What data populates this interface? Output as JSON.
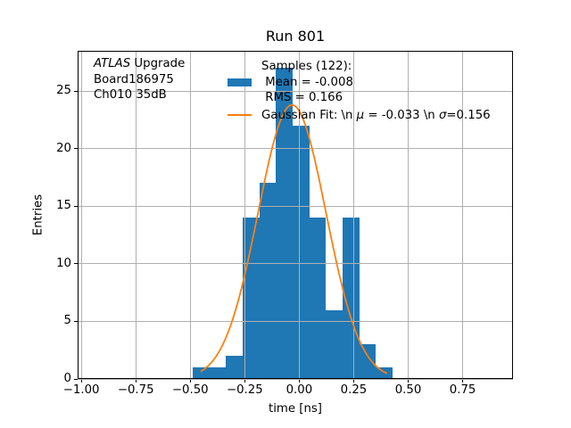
{
  "chart_data": {
    "type": "bar",
    "subtype": "histogram-with-gaussian-fit",
    "title": "Run 801",
    "xlabel": "time [ns]",
    "ylabel": "Entries",
    "xlim": [
      -1.017,
      0.981
    ],
    "ylim": [
      0,
      28.5
    ],
    "grid": true,
    "grid_color": "#b0b0b0",
    "grid_above_bars": true,
    "xticks": [
      -1.0,
      -0.75,
      -0.5,
      -0.25,
      0.0,
      0.25,
      0.5,
      0.75
    ],
    "xtick_labels": [
      "−1.00",
      "−0.75",
      "−0.50",
      "−0.25",
      "0.00",
      "0.25",
      "0.50",
      "0.75"
    ],
    "yticks": [
      0,
      5,
      10,
      15,
      20,
      25
    ],
    "ytick_labels": [
      "0",
      "5",
      "10",
      "15",
      "20",
      "25"
    ],
    "bin_edges": [
      -0.4887,
      -0.4123,
      -0.3358,
      -0.2594,
      -0.1829,
      -0.1065,
      -0.03,
      0.0465,
      0.1229,
      0.1994,
      0.2758,
      0.3523,
      0.4287
    ],
    "counts": [
      1,
      1,
      2,
      14,
      17,
      27,
      22,
      14,
      6,
      14,
      3,
      1
    ],
    "bar_color": "#1f77b4",
    "samples": {
      "n": 122,
      "mean": -0.008,
      "rms": 0.166
    },
    "fit": {
      "type": "gaussian",
      "amplitude": 23.8,
      "mu": -0.033,
      "sigma": 0.156,
      "x_start": -0.45,
      "x_end": 0.4,
      "color": "#ff7f0e",
      "linewidth": 1.8
    },
    "legend": {
      "frame": false,
      "entries": [
        {
          "handle": "patch",
          "color": "#1f77b4",
          "lines": [
            [
              {
                "text": "Samples (122):"
              }
            ],
            [
              {
                "text": " Mean = -0.008"
              }
            ],
            [
              {
                "text": " RMS = 0.166"
              }
            ]
          ]
        },
        {
          "handle": "line",
          "color": "#ff7f0e",
          "lines": [
            [
              {
                "text": "Gaussian Fit: \\n "
              },
              {
                "text": "μ",
                "italic": true
              },
              {
                "text": " = -0.033 \\n "
              },
              {
                "text": "σ",
                "italic": true
              },
              {
                "text": "=0.156"
              }
            ]
          ]
        }
      ]
    },
    "annotation": {
      "lines": [
        [
          {
            "text": "ATLAS",
            "italic": true
          },
          {
            "text": " Upgrade"
          }
        ],
        [
          {
            "text": "Board186975"
          }
        ],
        [
          {
            "text": "Ch010 35dB"
          }
        ]
      ]
    }
  }
}
